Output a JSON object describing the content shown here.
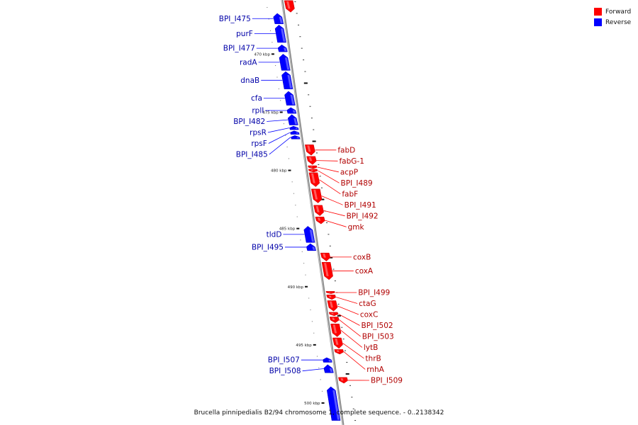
{
  "caption": "Brucella pinnipedialis B2/94 chromosome 1, complete sequence. - 0..2138342",
  "colors": {
    "forward": "#ff0000",
    "reverse": "#0000ff",
    "axis": "#888888"
  },
  "legend": [
    {
      "label": "Forward",
      "strand": "forward"
    },
    {
      "label": "Reverse",
      "strand": "reverse"
    }
  ],
  "scale_ticks": [
    {
      "kbp": 470,
      "label": "470 kbp"
    },
    {
      "kbp": 475,
      "label": "475 kbp"
    },
    {
      "kbp": 480,
      "label": "480 kbp"
    },
    {
      "kbp": 485,
      "label": "485 kbp"
    },
    {
      "kbp": 490,
      "label": "490 kbp"
    },
    {
      "kbp": 495,
      "label": "495 kbp"
    },
    {
      "kbp": 500,
      "label": "500 kbp"
    }
  ],
  "genes": [
    {
      "name": "",
      "strand": "forward",
      "start_kbp": 465.4,
      "end_kbp": 466.4
    },
    {
      "name": "BPI_I475",
      "strand": "reverse",
      "start_kbp": 466.5,
      "end_kbp": 467.4
    },
    {
      "name": "purF",
      "strand": "reverse",
      "start_kbp": 467.5,
      "end_kbp": 469.0
    },
    {
      "name": "BPI_I477",
      "strand": "reverse",
      "start_kbp": 469.2,
      "end_kbp": 469.8
    },
    {
      "name": "radA",
      "strand": "reverse",
      "start_kbp": 470.0,
      "end_kbp": 471.4
    },
    {
      "name": "dnaB",
      "strand": "reverse",
      "start_kbp": 471.5,
      "end_kbp": 473.0
    },
    {
      "name": "cfa",
      "strand": "reverse",
      "start_kbp": 473.2,
      "end_kbp": 474.4
    },
    {
      "name": "rplI",
      "strand": "reverse",
      "start_kbp": 474.6,
      "end_kbp": 475.1
    },
    {
      "name": "BPI_I482",
      "strand": "reverse",
      "start_kbp": 475.2,
      "end_kbp": 476.1
    },
    {
      "name": "rpsR",
      "strand": "reverse",
      "start_kbp": 476.2,
      "end_kbp": 476.5
    },
    {
      "name": "rpsF",
      "strand": "reverse",
      "start_kbp": 476.6,
      "end_kbp": 476.9
    },
    {
      "name": "BPI_I485",
      "strand": "reverse",
      "start_kbp": 477.0,
      "end_kbp": 477.3
    },
    {
      "name": "fabD",
      "strand": "forward",
      "start_kbp": 477.8,
      "end_kbp": 478.7
    },
    {
      "name": "fabG-1",
      "strand": "forward",
      "start_kbp": 478.8,
      "end_kbp": 479.5
    },
    {
      "name": "acpP",
      "strand": "forward",
      "start_kbp": 479.6,
      "end_kbp": 479.85
    },
    {
      "name": "BPI_I489",
      "strand": "forward",
      "start_kbp": 479.9,
      "end_kbp": 480.15
    },
    {
      "name": "fabF",
      "strand": "forward",
      "start_kbp": 480.2,
      "end_kbp": 481.4
    },
    {
      "name": "BPI_I491",
      "strand": "forward",
      "start_kbp": 481.6,
      "end_kbp": 482.8
    },
    {
      "name": "BPI_I492",
      "strand": "forward",
      "start_kbp": 483.0,
      "end_kbp": 483.9
    },
    {
      "name": "gmk",
      "strand": "forward",
      "start_kbp": 484.0,
      "end_kbp": 484.6
    },
    {
      "name": "tldD",
      "strand": "reverse",
      "start_kbp": 484.8,
      "end_kbp": 486.2
    },
    {
      "name": "BPI_I495",
      "strand": "reverse",
      "start_kbp": 486.3,
      "end_kbp": 486.9
    },
    {
      "name": "coxB",
      "strand": "forward",
      "start_kbp": 487.1,
      "end_kbp": 487.8
    },
    {
      "name": "coxA",
      "strand": "forward",
      "start_kbp": 487.9,
      "end_kbp": 489.4
    },
    {
      "name": "BPI_I499",
      "strand": "forward",
      "start_kbp": 490.4,
      "end_kbp": 490.6
    },
    {
      "name": "ctaG",
      "strand": "forward",
      "start_kbp": 490.7,
      "end_kbp": 491.1
    },
    {
      "name": "coxC",
      "strand": "forward",
      "start_kbp": 491.2,
      "end_kbp": 492.1
    },
    {
      "name": "BPI_I502",
      "strand": "forward",
      "start_kbp": 492.2,
      "end_kbp": 492.5
    },
    {
      "name": "BPI_I503",
      "strand": "forward",
      "start_kbp": 492.6,
      "end_kbp": 493.1
    },
    {
      "name": "lytB",
      "strand": "forward",
      "start_kbp": 493.2,
      "end_kbp": 494.3
    },
    {
      "name": "thrB",
      "strand": "forward",
      "start_kbp": 494.4,
      "end_kbp": 495.3
    },
    {
      "name": "rnhA",
      "strand": "forward",
      "start_kbp": 495.4,
      "end_kbp": 495.8
    },
    {
      "name": "BPI_I507",
      "strand": "reverse",
      "start_kbp": 496.1,
      "end_kbp": 496.5
    },
    {
      "name": "BPI_I508",
      "strand": "reverse",
      "start_kbp": 496.7,
      "end_kbp": 497.4
    },
    {
      "name": "BPI_I509",
      "strand": "forward",
      "start_kbp": 497.8,
      "end_kbp": 498.3
    },
    {
      "name": "",
      "strand": "reverse",
      "start_kbp": 498.6,
      "end_kbp": 501.5
    }
  ]
}
